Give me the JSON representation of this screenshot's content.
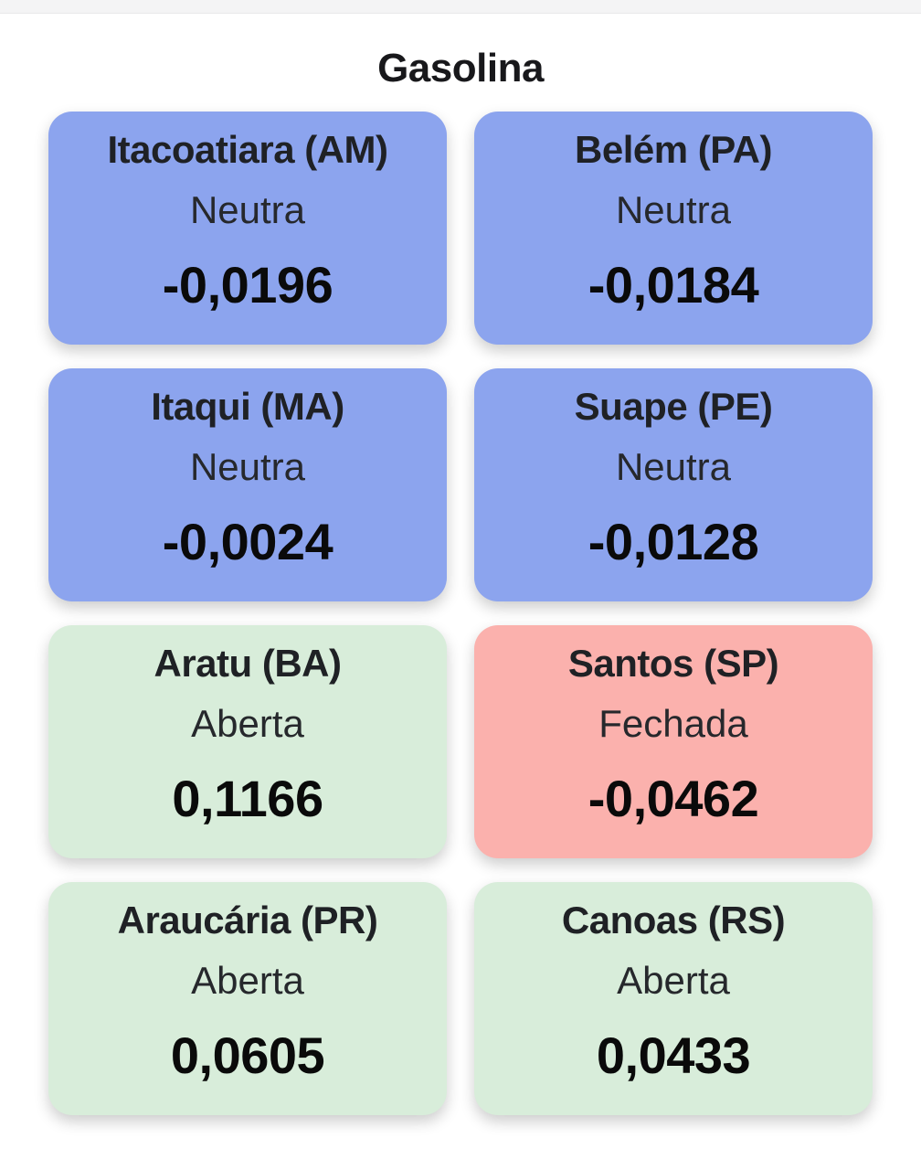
{
  "page": {
    "title": "Gasolina"
  },
  "colors": {
    "neutral": "#8CA4EE",
    "open": "#D8EDDA",
    "closed": "#FBB1AD",
    "text_primary": "#1C1C1E",
    "page_background": "#FFFFFF",
    "top_strip": "#F4F4F5"
  },
  "cards": [
    {
      "name": "Itacoatiara (AM)",
      "status": "Neutra",
      "value": "-0,0196",
      "state": "neutral"
    },
    {
      "name": "Belém (PA)",
      "status": "Neutra",
      "value": "-0,0184",
      "state": "neutral"
    },
    {
      "name": "Itaqui (MA)",
      "status": "Neutra",
      "value": "-0,0024",
      "state": "neutral"
    },
    {
      "name": "Suape (PE)",
      "status": "Neutra",
      "value": "-0,0128",
      "state": "neutral"
    },
    {
      "name": "Aratu (BA)",
      "status": "Aberta",
      "value": "0,1166",
      "state": "open"
    },
    {
      "name": "Santos (SP)",
      "status": "Fechada",
      "value": "-0,0462",
      "state": "closed"
    },
    {
      "name": "Araucária (PR)",
      "status": "Aberta",
      "value": "0,0605",
      "state": "open"
    },
    {
      "name": "Canoas (RS)",
      "status": "Aberta",
      "value": "0,0433",
      "state": "open"
    }
  ]
}
